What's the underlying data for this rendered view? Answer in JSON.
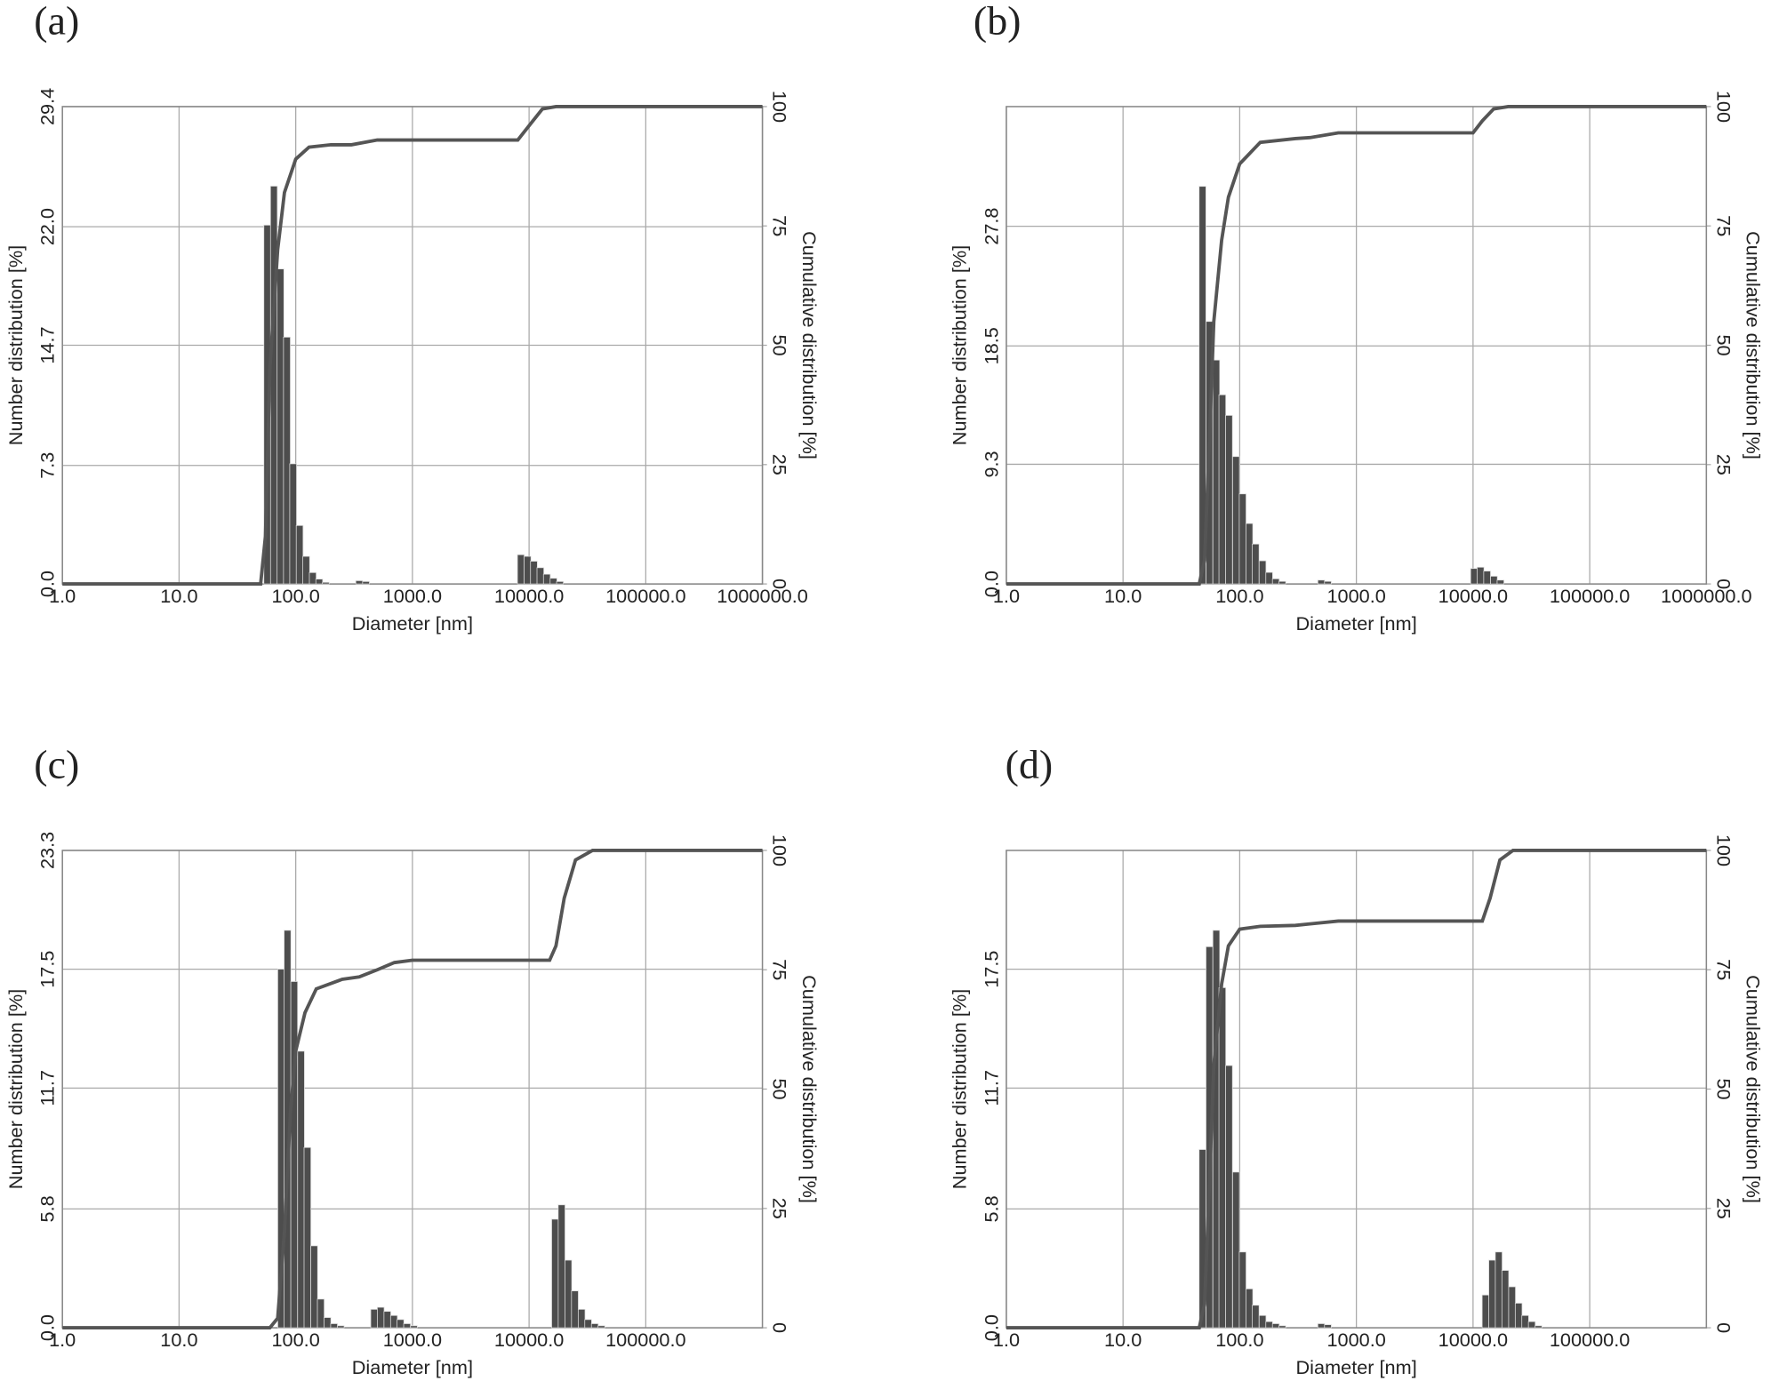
{
  "chart_data": [
    {
      "type": "bar",
      "label": "(a)",
      "xlabel": "Diameter [nm]",
      "ylabel": "Number distribution [%]",
      "y2label": "Cumulative distribution [%]",
      "xscale": "log",
      "grid": true,
      "xlim": [
        1,
        1000000
      ],
      "xticks": [
        {
          "value": 1,
          "label": "1.0"
        },
        {
          "value": 10,
          "label": "10.0"
        },
        {
          "value": 100,
          "label": "100.0"
        },
        {
          "value": 1000,
          "label": "1000.0"
        },
        {
          "value": 10000,
          "label": "10000.0"
        },
        {
          "value": 100000,
          "label": "100000.0"
        },
        {
          "value": 1000000,
          "label": "1000000.0"
        }
      ],
      "ylim": [
        0,
        29.4
      ],
      "yticks": [
        {
          "value": 0,
          "label": "0.0"
        },
        7.3,
        14.7,
        {
          "value": 22,
          "label": "22.0"
        },
        29.4
      ],
      "y2lim": [
        0,
        100
      ],
      "y2ticks": [
        0,
        25,
        50,
        75,
        100
      ],
      "series": [
        {
          "type": "bar",
          "color": "#4d4d4d",
          "x": [
            57,
            65,
            74,
            84,
            95,
            108,
            123,
            140,
            159,
            181,
            350,
            400,
            8500,
            9700,
            11000,
            12500,
            14200,
            16200,
            18400
          ],
          "values": [
            22.1,
            24.5,
            19.4,
            15.2,
            7.4,
            3.6,
            1.7,
            0.7,
            0.3,
            0.1,
            0.2,
            0.15,
            1.8,
            1.7,
            1.4,
            1.0,
            0.6,
            0.35,
            0.15
          ]
        },
        {
          "type": "line",
          "axis": "y2",
          "color": "#555555",
          "x": [
            1,
            50,
            55,
            60,
            70,
            80,
            100,
            130,
            200,
            300,
            500,
            8000,
            10000,
            13000,
            17000,
            1000000
          ],
          "values": [
            0,
            0,
            10,
            45,
            70,
            82,
            89,
            91.5,
            92,
            92,
            93,
            93,
            96,
            99.5,
            100,
            100
          ]
        }
      ]
    },
    {
      "type": "bar",
      "label": "(b)",
      "xlabel": "Diameter [nm]",
      "ylabel": "Number distribution [%]",
      "y2label": "Cumulative distribution [%]",
      "xscale": "log",
      "grid": true,
      "xlim": [
        1,
        1000000
      ],
      "xticks": [
        {
          "value": 1,
          "label": "1.0"
        },
        {
          "value": 10,
          "label": "10.0"
        },
        {
          "value": 100,
          "label": "100.0"
        },
        {
          "value": 1000,
          "label": "1000.0"
        },
        {
          "value": 10000,
          "label": "10000.0"
        },
        {
          "value": 100000,
          "label": "100000.0"
        },
        {
          "value": 1000000,
          "label": "1000000.0"
        }
      ],
      "ylim": [
        0,
        37.1
      ],
      "yticks": [
        {
          "value": 0,
          "label": "0.0"
        },
        9.3,
        18.5,
        27.8
      ],
      "y2lim": [
        0,
        100
      ],
      "y2ticks": [
        0,
        25,
        50,
        75,
        100
      ],
      "series": [
        {
          "type": "bar",
          "color": "#4d4d4d",
          "x": [
            48,
            55,
            63,
            71,
            81,
            93,
            106,
            121,
            137,
            157,
            179,
            204,
            232,
            500,
            570,
            10200,
            11600,
            13200,
            15100,
            17200
          ],
          "values": [
            30.9,
            20.4,
            17.4,
            14.7,
            13.1,
            9.9,
            7.0,
            4.7,
            3.1,
            1.8,
            0.9,
            0.4,
            0.2,
            0.3,
            0.2,
            1.2,
            1.3,
            1.0,
            0.6,
            0.3
          ]
        },
        {
          "type": "line",
          "axis": "y2",
          "color": "#555555",
          "x": [
            1,
            45,
            50,
            55,
            60,
            70,
            80,
            100,
            150,
            300,
            400,
            700,
            10000,
            12000,
            15000,
            20000,
            1000000
          ],
          "values": [
            0,
            0,
            5,
            30,
            55,
            72,
            81,
            88,
            92.5,
            93.3,
            93.5,
            94.5,
            94.5,
            97,
            99.5,
            100,
            100
          ]
        }
      ]
    },
    {
      "type": "bar",
      "label": "(c)",
      "xlabel": "Diameter [nm]",
      "ylabel": "Number distribution [%]",
      "y2label": "Cumulative distribution [%]",
      "xscale": "log",
      "grid": true,
      "xlim": [
        1,
        1000000
      ],
      "xticks": [
        {
          "value": 1,
          "label": "1.0"
        },
        {
          "value": 10,
          "label": "10.0"
        },
        {
          "value": 100,
          "label": "100.0"
        },
        {
          "value": 1000,
          "label": "1000.0"
        },
        {
          "value": 10000,
          "label": "10000.0"
        },
        {
          "value": 100000,
          "label": "100000.0"
        }
      ],
      "ylim": [
        0,
        23.3
      ],
      "yticks": [
        {
          "value": 0,
          "label": "0.0"
        },
        5.8,
        11.7,
        17.5,
        23.3
      ],
      "y2lim": [
        0,
        100
      ],
      "y2ticks": [
        0,
        25,
        50,
        75,
        100
      ],
      "series": [
        {
          "type": "bar",
          "color": "#4d4d4d",
          "x": [
            75,
            85,
            97,
            111,
            126,
            144,
            164,
            187,
            213,
            243,
            470,
            535,
            610,
            695,
            790,
            900,
            1030,
            16700,
            19000,
            21700,
            24700,
            28200,
            32100,
            36600,
            41700
          ],
          "values": [
            17.5,
            19.4,
            16.9,
            13.5,
            8.8,
            4.0,
            1.4,
            0.5,
            0.2,
            0.1,
            0.9,
            1.0,
            0.8,
            0.6,
            0.4,
            0.2,
            0.1,
            5.3,
            6.0,
            3.3,
            1.8,
            0.9,
            0.4,
            0.2,
            0.1
          ]
        },
        {
          "type": "line",
          "axis": "y2",
          "color": "#555555",
          "x": [
            1,
            60,
            70,
            80,
            90,
            100,
            120,
            150,
            250,
            350,
            500,
            700,
            1000,
            15000,
            17000,
            20000,
            25000,
            35000,
            1000000
          ],
          "values": [
            0,
            0,
            2,
            20,
            45,
            58,
            66,
            71,
            73,
            73.5,
            75,
            76.5,
            77,
            77,
            80,
            90,
            98,
            100,
            100
          ]
        }
      ]
    },
    {
      "type": "bar",
      "label": "(d)",
      "xlabel": "Diameter [nm]",
      "ylabel": "Number distribution [%]",
      "y2label": "Cumulative distribution [%]",
      "xscale": "log",
      "grid": true,
      "xlim": [
        1,
        1000000
      ],
      "xticks": [
        {
          "value": 1,
          "label": "1.0"
        },
        {
          "value": 10,
          "label": "10.0"
        },
        {
          "value": 100,
          "label": "100.0"
        },
        {
          "value": 1000,
          "label": "1000.0"
        },
        {
          "value": 10000,
          "label": "10000.0"
        },
        {
          "value": 100000,
          "label": "100000.0"
        }
      ],
      "ylim": [
        0,
        23.3
      ],
      "yticks": [
        {
          "value": 0,
          "label": "0.0"
        },
        5.8,
        11.7,
        17.5
      ],
      "y2lim": [
        0,
        100
      ],
      "y2ticks": [
        0,
        25,
        50,
        75,
        100
      ],
      "series": [
        {
          "type": "bar",
          "color": "#4d4d4d",
          "x": [
            48,
            55,
            63,
            71,
            81,
            93,
            106,
            121,
            137,
            157,
            179,
            204,
            232,
            500,
            570,
            12800,
            14600,
            16600,
            18900,
            21600,
            24600,
            28000,
            31900,
            36400
          ],
          "values": [
            8.7,
            18.6,
            19.4,
            16.6,
            12.8,
            7.6,
            3.7,
            1.9,
            1.1,
            0.6,
            0.3,
            0.2,
            0.1,
            0.2,
            0.15,
            1.6,
            3.3,
            3.7,
            2.8,
            2.0,
            1.2,
            0.6,
            0.3,
            0.1
          ]
        },
        {
          "type": "line",
          "axis": "y2",
          "color": "#555555",
          "x": [
            1,
            45,
            50,
            55,
            60,
            70,
            80,
            100,
            150,
            300,
            400,
            700,
            12000,
            14000,
            17000,
            22000,
            1000000
          ],
          "values": [
            0,
            0,
            5,
            30,
            55,
            72,
            80,
            83.5,
            84.1,
            84.3,
            84.6,
            85.2,
            85.2,
            90,
            98,
            100,
            100
          ]
        }
      ]
    }
  ]
}
